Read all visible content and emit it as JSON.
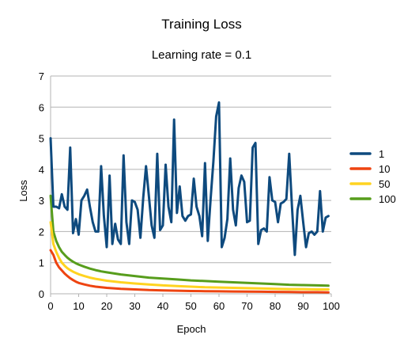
{
  "chart_data": {
    "type": "line",
    "title": "Training Loss",
    "subtitle": "Learning rate = 0.1",
    "xlabel": "Epoch",
    "ylabel": "Loss",
    "xlim": [
      0,
      100
    ],
    "ylim": [
      0,
      7
    ],
    "xticks": [
      0,
      10,
      20,
      30,
      40,
      50,
      60,
      70,
      80,
      90,
      100
    ],
    "yticks": [
      0,
      1,
      2,
      3,
      4,
      5,
      6,
      7
    ],
    "grid": "horizontal",
    "legend_position": "right",
    "series": [
      {
        "name": "1",
        "color": "#0e4a7e",
        "x": [
          0,
          1,
          2,
          3,
          4,
          5,
          6,
          7,
          8,
          9,
          10,
          11,
          12,
          13,
          14,
          15,
          16,
          17,
          18,
          19,
          20,
          21,
          22,
          23,
          24,
          25,
          26,
          27,
          28,
          29,
          30,
          31,
          32,
          33,
          34,
          35,
          36,
          37,
          38,
          39,
          40,
          41,
          42,
          43,
          44,
          45,
          46,
          47,
          48,
          49,
          50,
          51,
          52,
          53,
          54,
          55,
          56,
          57,
          58,
          59,
          60,
          61,
          62,
          63,
          64,
          65,
          66,
          67,
          68,
          69,
          70,
          71,
          72,
          73,
          74,
          75,
          76,
          77,
          78,
          79,
          80,
          81,
          82,
          83,
          84,
          85,
          86,
          87,
          88,
          89,
          90,
          91,
          92,
          93,
          94,
          95,
          96,
          97,
          98,
          99
        ],
        "values": [
          5.0,
          2.8,
          2.8,
          2.75,
          3.2,
          2.8,
          2.7,
          4.7,
          1.95,
          2.4,
          1.9,
          3.0,
          3.15,
          3.35,
          2.8,
          2.3,
          2.0,
          2.0,
          4.1,
          2.5,
          1.5,
          3.8,
          1.6,
          2.25,
          1.75,
          1.6,
          4.45,
          2.3,
          1.6,
          3.0,
          2.95,
          2.7,
          1.8,
          3.1,
          4.1,
          3.15,
          2.2,
          1.8,
          4.5,
          2.05,
          2.2,
          4.15,
          2.8,
          2.3,
          5.6,
          2.6,
          3.45,
          2.5,
          2.35,
          2.5,
          2.55,
          3.7,
          2.8,
          2.5,
          1.85,
          4.2,
          1.7,
          3.05,
          4.25,
          5.7,
          6.15,
          1.5,
          1.8,
          2.4,
          4.35,
          2.7,
          2.2,
          3.4,
          3.8,
          3.6,
          2.3,
          2.35,
          4.7,
          4.85,
          1.6,
          2.05,
          2.1,
          2.0,
          3.75,
          3.0,
          2.95,
          2.3,
          2.9,
          2.95,
          3.05,
          4.5,
          2.8,
          1.25,
          2.7,
          3.15,
          2.3,
          1.5,
          1.95,
          2.0,
          1.9,
          2.0,
          3.3,
          2.0,
          2.45,
          2.5
        ]
      },
      {
        "name": "10",
        "color": "#ee4411",
        "x": [
          0,
          1,
          2,
          3,
          4,
          5,
          6,
          7,
          8,
          9,
          10,
          12,
          14,
          16,
          18,
          20,
          25,
          30,
          35,
          40,
          45,
          50,
          55,
          60,
          65,
          70,
          75,
          80,
          85,
          90,
          95,
          99
        ],
        "values": [
          1.4,
          1.25,
          1.0,
          0.85,
          0.75,
          0.65,
          0.57,
          0.5,
          0.44,
          0.39,
          0.35,
          0.3,
          0.26,
          0.23,
          0.21,
          0.19,
          0.16,
          0.14,
          0.12,
          0.11,
          0.1,
          0.09,
          0.085,
          0.08,
          0.075,
          0.07,
          0.065,
          0.06,
          0.055,
          0.05,
          0.05,
          0.045
        ]
      },
      {
        "name": "50",
        "color": "#ffd320",
        "x": [
          0,
          1,
          2,
          3,
          4,
          5,
          6,
          7,
          8,
          9,
          10,
          12,
          14,
          16,
          18,
          20,
          25,
          30,
          35,
          40,
          45,
          50,
          55,
          60,
          65,
          70,
          75,
          80,
          85,
          90,
          95,
          99
        ],
        "values": [
          2.3,
          1.6,
          1.35,
          1.15,
          1.0,
          0.9,
          0.82,
          0.76,
          0.71,
          0.67,
          0.63,
          0.57,
          0.52,
          0.48,
          0.45,
          0.42,
          0.37,
          0.33,
          0.3,
          0.27,
          0.25,
          0.23,
          0.21,
          0.2,
          0.19,
          0.18,
          0.17,
          0.16,
          0.15,
          0.15,
          0.14,
          0.14
        ]
      },
      {
        "name": "100",
        "color": "#579d1c",
        "x": [
          0,
          1,
          2,
          3,
          4,
          5,
          6,
          7,
          8,
          9,
          10,
          12,
          14,
          16,
          18,
          20,
          25,
          30,
          35,
          40,
          45,
          50,
          55,
          60,
          65,
          70,
          75,
          80,
          85,
          90,
          95,
          99
        ],
        "values": [
          3.15,
          2.0,
          1.7,
          1.5,
          1.35,
          1.25,
          1.16,
          1.09,
          1.03,
          0.98,
          0.94,
          0.87,
          0.81,
          0.76,
          0.72,
          0.69,
          0.62,
          0.57,
          0.52,
          0.49,
          0.46,
          0.43,
          0.41,
          0.39,
          0.37,
          0.35,
          0.33,
          0.31,
          0.29,
          0.28,
          0.27,
          0.26
        ]
      }
    ]
  }
}
